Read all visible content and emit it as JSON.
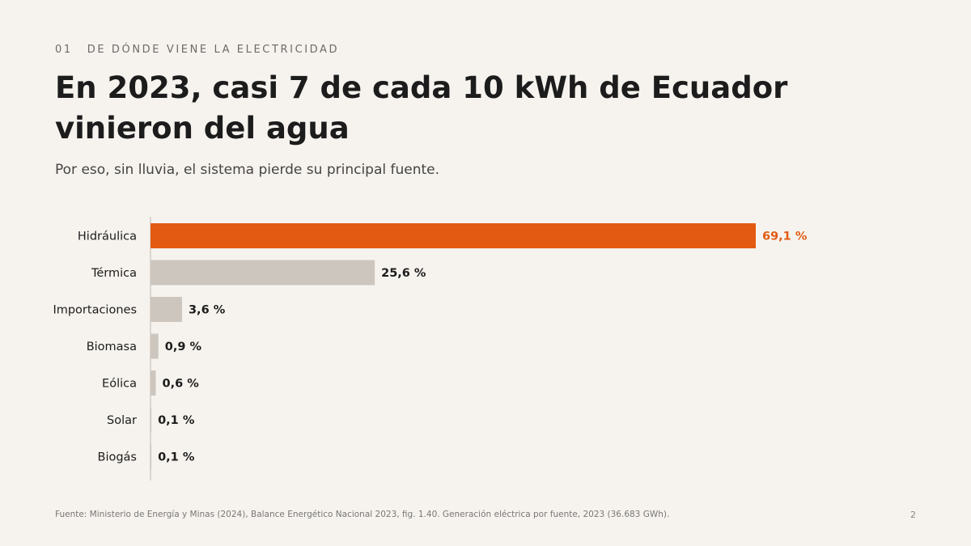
{
  "section": {
    "number": "01",
    "label": "DE DÓNDE VIENE LA ELECTRICIDAD"
  },
  "title": "En 2023, casi 7 de cada 10 kWh de Ecuador vinieron del agua",
  "subtitle": "Por eso, sin lluvia, el sistema pierde su principal fuente.",
  "colors": {
    "background": "#f6f3ee",
    "highlight": "#e35b12",
    "bar": "#ccc6bf",
    "axis": "#bdb7b0",
    "text": "#1c1c1c"
  },
  "chart_data": {
    "type": "bar",
    "orientation": "horizontal",
    "categories": [
      "Hidráulica",
      "Térmica",
      "Importaciones",
      "Biomasa",
      "Eólica",
      "Solar",
      "Biogás"
    ],
    "values": [
      69.1,
      25.6,
      3.6,
      0.9,
      0.6,
      0.1,
      0.1
    ],
    "value_labels": [
      "69,1 %",
      "25,6 %",
      "3,6 %",
      "0,9 %",
      "0,6 %",
      "0,1 %",
      "0,1 %"
    ],
    "highlight_index": 0,
    "xlim": [
      0,
      69.1
    ],
    "grid": false
  },
  "footnote": "Fuente: Ministerio de Energía y Minas (2024), Balance Energético Nacional 2023, fig. 1.40. Generación eléctrica por fuente, 2023 (36.683 GWh).",
  "page_number": "2"
}
